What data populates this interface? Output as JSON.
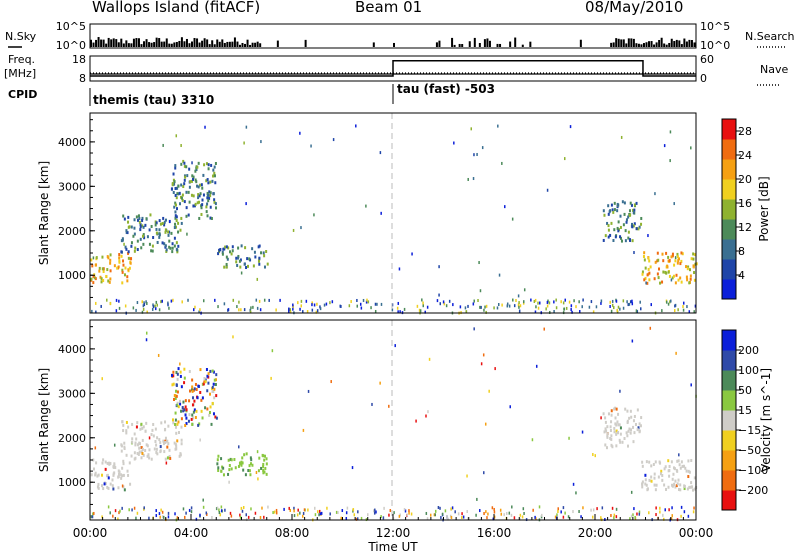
{
  "header": {
    "station": "Wallops Island (fitACF)",
    "beam": "Beam 01",
    "date": "08/May/2010"
  },
  "side_labels": {
    "nsky": "N.Sky",
    "freq": "Freq.",
    "freq_unit": "[MHz]",
    "cpid": "CPID",
    "nsearch": "N.Search",
    "nave": "Nave"
  },
  "colors": {
    "power": [
      "#0b1fd9",
      "#1f45a8",
      "#3a6f91",
      "#4c8a59",
      "#8fb230",
      "#f0d020",
      "#f5a012",
      "#f06c10",
      "#e81010"
    ],
    "velocity": [
      "#e81010",
      "#f06c10",
      "#f5a012",
      "#f0d020",
      "#cfcdc8",
      "#8ac840",
      "#4c8a59",
      "#2f4aa8",
      "#0b1fd9"
    ],
    "frame": "#000000",
    "grid_dash": "#bbbbbb"
  },
  "chart_data": [
    {
      "type": "bar",
      "panel": "noise",
      "left_axis_label": "N.Sky",
      "right_axis_label": "N.Search",
      "yticks_left": [
        "10^5",
        "10^0"
      ],
      "yticks_right": [
        "10^5",
        "10^0"
      ],
      "note": "noise levels are drawn only as bars; no values printed"
    },
    {
      "type": "line",
      "panel": "frequency",
      "left_axis_label": "Freq. [MHz]",
      "right_axis_label": "Nave",
      "yticks_left": [
        "18",
        "8"
      ],
      "yticks_right": [
        "60",
        "0"
      ],
      "nave_segments": [
        {
          "start_hour": 0.0,
          "end_hour": 12.0,
          "nave": 10
        },
        {
          "start_hour": 12.0,
          "end_hour": 21.9,
          "nave": 48
        },
        {
          "start_hour": 21.9,
          "end_hour": 24.0,
          "nave": 10
        }
      ]
    },
    {
      "type": "table",
      "panel": "cpid",
      "label": "CPID",
      "segments": [
        {
          "start_hour": 0.0,
          "text": "themis (tau) 3310"
        },
        {
          "start_hour": 12.0,
          "text": "tau (fast) -503"
        }
      ]
    },
    {
      "type": "heatmap",
      "panel": "power",
      "ylabel": "Slant Range [km]",
      "yticks": [
        1000,
        2000,
        3000,
        4000
      ],
      "ylim": [
        150,
        4650
      ],
      "x_unit": "hour UT",
      "xlim": [
        0,
        24
      ],
      "colorbar_label": "Power [dB]",
      "colorbar_ticks": [
        4,
        8,
        12,
        16,
        20,
        24,
        28
      ],
      "colorbar_range": [
        0,
        30
      ],
      "scatter_regions": [
        {
          "t0": 0.0,
          "t1": 1.6,
          "r0": 850,
          "r1": 1550,
          "value": "high"
        },
        {
          "t0": 1.2,
          "t1": 3.6,
          "r0": 1550,
          "r1": 2400,
          "value": "mid"
        },
        {
          "t0": 3.2,
          "t1": 5.0,
          "r0": 2300,
          "r1": 3600,
          "value": "mid"
        },
        {
          "t0": 5.0,
          "t1": 7.0,
          "r0": 1200,
          "r1": 1700,
          "value": "mid"
        },
        {
          "t0": 20.3,
          "t1": 21.8,
          "r0": 1800,
          "r1": 2700,
          "value": "mid"
        },
        {
          "t0": 21.8,
          "t1": 24.0,
          "r0": 850,
          "r1": 1550,
          "value": "high"
        }
      ]
    },
    {
      "type": "heatmap",
      "panel": "velocity",
      "ylabel": "Slant Range [km]",
      "yticks": [
        1000,
        2000,
        3000,
        4000
      ],
      "ylim": [
        150,
        4650
      ],
      "xlabel": "Time UT",
      "xticks": [
        "00:00",
        "04:00",
        "08:00",
        "12:00",
        "16:00",
        "20:00",
        "00:00"
      ],
      "xlim": [
        0,
        24
      ],
      "colorbar_label": "Velocity [m s^-1]",
      "colorbar_ticks": [
        "200",
        "100",
        "50",
        "15",
        "−15",
        "−50",
        "−100",
        "−200"
      ],
      "scatter_regions": [
        {
          "t0": 0.0,
          "t1": 1.6,
          "r0": 850,
          "r1": 1550,
          "value": "ground"
        },
        {
          "t0": 1.2,
          "t1": 3.6,
          "r0": 1550,
          "r1": 2400,
          "value": "ground"
        },
        {
          "t0": 3.2,
          "t1": 5.0,
          "r0": 2300,
          "r1": 3600,
          "value": "mixed"
        },
        {
          "t0": 5.0,
          "t1": 7.0,
          "r0": 1200,
          "r1": 1700,
          "value": "positive"
        },
        {
          "t0": 20.3,
          "t1": 21.8,
          "r0": 1800,
          "r1": 2700,
          "value": "ground"
        },
        {
          "t0": 21.8,
          "t1": 24.0,
          "r0": 850,
          "r1": 1550,
          "value": "ground"
        }
      ]
    }
  ]
}
